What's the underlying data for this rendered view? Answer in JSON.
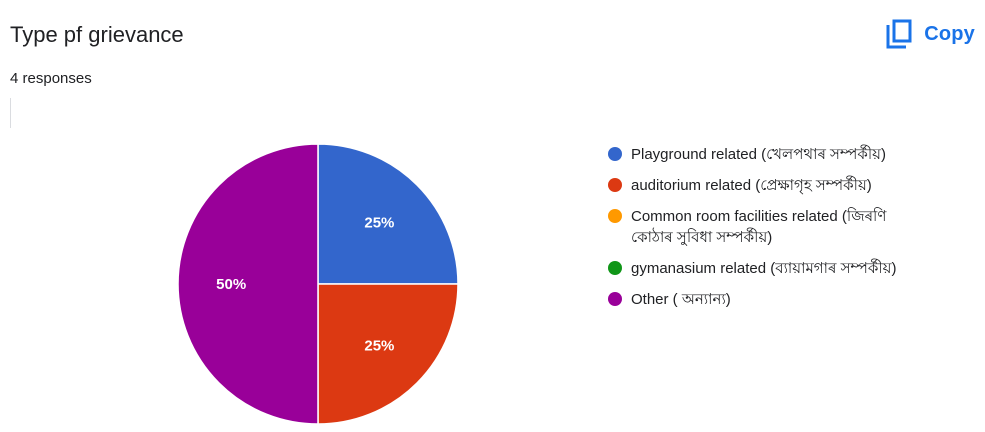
{
  "header": {
    "title": "Type pf grievance",
    "responses": "4 responses",
    "copy_label": "Copy",
    "copy_icon": "copy-icon"
  },
  "colors": {
    "accent": "#1a73e8",
    "pie_border": "#ffffff"
  },
  "chart_data": {
    "type": "pie",
    "title": "Type pf grievance",
    "legend_position": "right",
    "total_responses": 4,
    "slices": [
      {
        "label": "Playground related (খেলপথাৰ সম্পৰ্কীয়)",
        "value": 1,
        "percent": 25,
        "color": "#3366cc"
      },
      {
        "label": "auditorium related (প্ৰেক্ষাগৃহ সম্পৰ্কীয়)",
        "value": 1,
        "percent": 25,
        "color": "#dc3912"
      },
      {
        "label": "Common room facilities related (জিৰণি কোঠাৰ সুবিধা সম্পৰ্কীয়)",
        "value": 0,
        "percent": 0,
        "color": "#ff9900"
      },
      {
        "label": "gymanasium related (ব্যায়ামগাৰ সম্পৰ্কীয়)",
        "value": 0,
        "percent": 0,
        "color": "#109618"
      },
      {
        "label": "Other ( অন্যান্য)",
        "value": 2,
        "percent": 50,
        "color": "#990099"
      }
    ]
  }
}
